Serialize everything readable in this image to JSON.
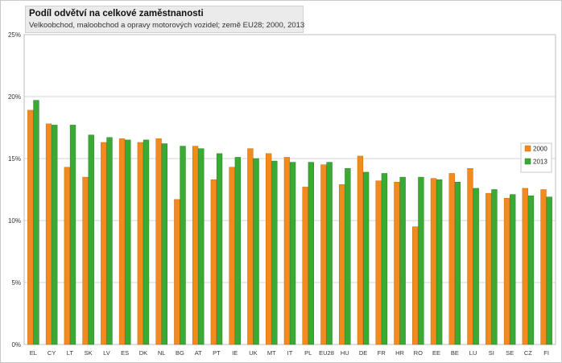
{
  "chart_data": {
    "type": "bar",
    "title": "Podíl odvětví na celkové zaměstnanosti",
    "subtitle": "Velkoobchod, maloobchod a opravy motorových  vozidel; země EU28; 2000, 2013",
    "xlabel": "",
    "ylabel": "",
    "ylim": [
      0,
      25
    ],
    "yticks": [
      "0%",
      "5%",
      "10%",
      "15%",
      "20%",
      "25%"
    ],
    "grid": true,
    "legend_position": "right",
    "categories": [
      "EL",
      "CY",
      "LT",
      "SK",
      "LV",
      "ES",
      "DK",
      "NL",
      "BG",
      "AT",
      "PT",
      "IE",
      "UK",
      "MT",
      "IT",
      "PL",
      "EU28",
      "HU",
      "DE",
      "FR",
      "HR",
      "RO",
      "EE",
      "BE",
      "LU",
      "SI",
      "SE",
      "CZ",
      "FI"
    ],
    "series": [
      {
        "name": "2000",
        "color": "#f28a1f",
        "values": [
          18.9,
          17.8,
          14.3,
          13.5,
          16.3,
          16.6,
          16.3,
          16.6,
          11.7,
          16.0,
          13.3,
          14.3,
          15.8,
          15.4,
          15.1,
          12.7,
          14.5,
          12.9,
          15.2,
          13.2,
          13.1,
          9.5,
          13.4,
          13.8,
          14.2,
          12.2,
          11.8,
          12.6,
          12.5
        ],
        "colorDark": "#c46a10"
      },
      {
        "name": "2013",
        "color": "#3aaa35",
        "values": [
          19.7,
          17.7,
          17.7,
          16.9,
          16.7,
          16.5,
          16.5,
          16.2,
          16.0,
          15.8,
          15.4,
          15.1,
          15.0,
          14.8,
          14.7,
          14.7,
          14.7,
          14.2,
          13.9,
          13.8,
          13.5,
          13.5,
          13.3,
          13.1,
          12.6,
          12.5,
          12.1,
          12.0,
          11.9
        ],
        "colorDark": "#24801f"
      }
    ]
  }
}
